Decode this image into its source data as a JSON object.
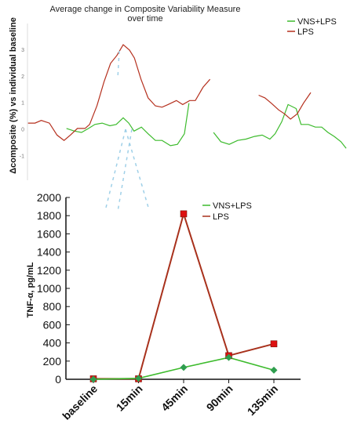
{
  "chart_data": [
    {
      "type": "line",
      "title": "Average change in Composite Variability Measure over time",
      "ylabel": "Δcomposite (%) vs individual baseline",
      "xlabel": "",
      "ylim": [
        -1.9,
        4
      ],
      "yticks": [
        "-1",
        "0",
        "1",
        "2",
        "3"
      ],
      "legend_position": "top-right",
      "grid": false,
      "series": [
        {
          "name": "VNS+LPS",
          "color": "#3dbb2d",
          "segments": [
            [
              [
                0.19,
                0.05
              ],
              [
                0.213,
                -0.05
              ],
              [
                0.233,
                -0.1
              ],
              [
                0.253,
                0.05
              ],
              [
                0.271,
                0.2
              ],
              [
                0.292,
                0.25
              ],
              [
                0.314,
                0.15
              ],
              [
                0.332,
                0.2
              ],
              [
                0.352,
                0.45
              ],
              [
                0.368,
                0.25
              ],
              [
                0.383,
                -0.05
              ],
              [
                0.404,
                0.1
              ],
              [
                0.423,
                -0.15
              ],
              [
                0.444,
                -0.4
              ],
              [
                0.463,
                -0.4
              ],
              [
                0.487,
                -0.6
              ],
              [
                0.507,
                -0.55
              ],
              [
                0.527,
                -0.15
              ],
              [
                0.54,
                1.0
              ]
            ],
            [
              [
                0.61,
                -0.1
              ],
              [
                0.631,
                -0.45
              ],
              [
                0.655,
                -0.55
              ],
              [
                0.679,
                -0.4
              ],
              [
                0.703,
                -0.35
              ],
              [
                0.727,
                -0.25
              ],
              [
                0.749,
                -0.2
              ],
              [
                0.771,
                -0.35
              ],
              [
                0.786,
                -0.15
              ],
              [
                0.805,
                0.3
              ],
              [
                0.823,
                0.95
              ],
              [
                0.846,
                0.8
              ],
              [
                0.86,
                0.2
              ],
              [
                0.881,
                0.2
              ],
              [
                0.901,
                0.1
              ],
              [
                0.919,
                0.1
              ],
              [
                0.937,
                -0.1
              ],
              [
                0.955,
                -0.25
              ],
              [
                0.974,
                -0.45
              ],
              [
                0.989,
                -0.7
              ]
            ]
          ]
        },
        {
          "name": "LPS",
          "color": "#b5301e",
          "segments": [
            [
              [
                0.08,
                0.25
              ],
              [
                0.1,
                0.25
              ],
              [
                0.118,
                0.35
              ],
              [
                0.141,
                0.25
              ],
              [
                0.163,
                -0.2
              ],
              [
                0.183,
                -0.4
              ],
              [
                0.201,
                -0.2
              ],
              [
                0.221,
                0.05
              ],
              [
                0.243,
                0.05
              ],
              [
                0.256,
                0.2
              ],
              [
                0.277,
                0.9
              ],
              [
                0.297,
                1.8
              ],
              [
                0.316,
                2.5
              ],
              [
                0.334,
                2.8
              ],
              [
                0.352,
                3.2
              ],
              [
                0.37,
                3.0
              ],
              [
                0.384,
                2.7
              ],
              [
                0.403,
                1.9
              ],
              [
                0.423,
                1.2
              ],
              [
                0.444,
                0.9
              ],
              [
                0.463,
                0.85
              ],
              [
                0.48,
                0.95
              ],
              [
                0.504,
                1.1
              ],
              [
                0.522,
                0.95
              ],
              [
                0.542,
                1.1
              ],
              [
                0.558,
                1.1
              ],
              [
                0.58,
                1.6
              ],
              [
                0.6,
                1.9
              ]
            ],
            [
              [
                0.739,
                1.3
              ],
              [
                0.757,
                1.2
              ],
              [
                0.775,
                1.0
              ],
              [
                0.796,
                0.75
              ],
              [
                0.813,
                0.6
              ],
              [
                0.83,
                0.4
              ],
              [
                0.849,
                0.6
              ],
              [
                0.867,
                1.0
              ],
              [
                0.888,
                1.4
              ]
            ]
          ]
        }
      ]
    },
    {
      "type": "line",
      "title": "",
      "ylabel": "TNF-α, pg/mL",
      "xlabel": "",
      "categories": [
        "baseline",
        "15min",
        "45min",
        "90min",
        "135min"
      ],
      "ylim": [
        0,
        2000
      ],
      "yticks": [
        0,
        200,
        400,
        600,
        800,
        1000,
        1200,
        1400,
        1600,
        1800,
        2000
      ],
      "legend_position": "top-right",
      "grid": false,
      "series": [
        {
          "name": "VNS+LPS",
          "color": "#3dbb2d",
          "marker_color": "#2f9e4f",
          "values": [
            0,
            10,
            130,
            240,
            100
          ]
        },
        {
          "name": "LPS",
          "color": "#a8311c",
          "marker_color": "#dd1111",
          "values": [
            5,
            5,
            1820,
            260,
            390
          ]
        }
      ]
    }
  ]
}
